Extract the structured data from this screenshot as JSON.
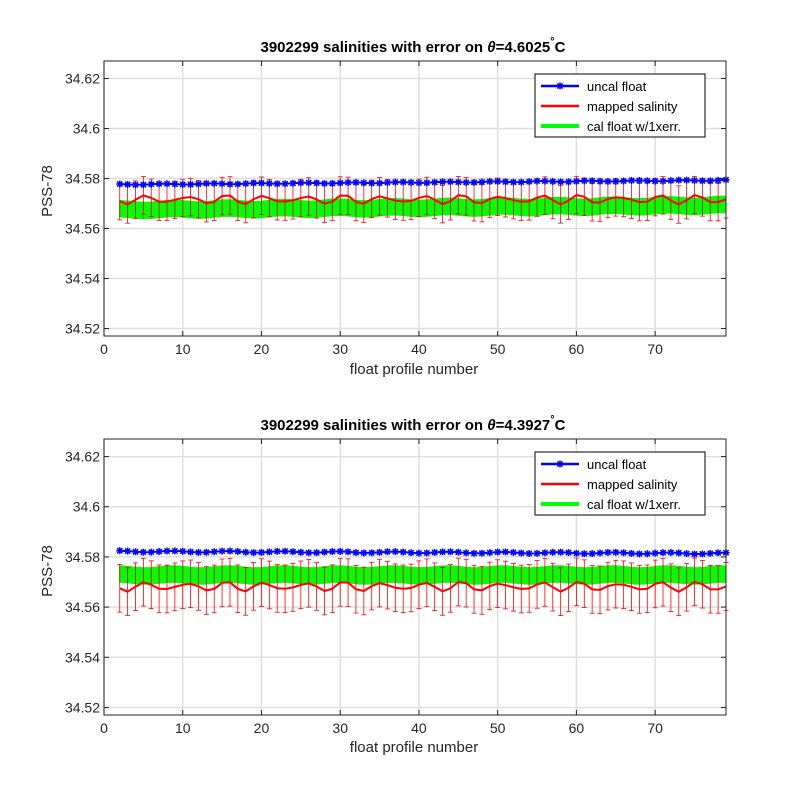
{
  "chart_data": [
    {
      "type": "line",
      "title_prefix": "3902299 salinities with error on ",
      "theta_symbol": "θ",
      "theta_value": "=4.6025",
      "degree": "°",
      "unit": "C",
      "xlabel": "float profile number",
      "ylabel": "PSS-78",
      "xlim": [
        0,
        79
      ],
      "ylim": [
        34.517,
        34.627
      ],
      "xticks": [
        0,
        10,
        20,
        30,
        40,
        50,
        60,
        70
      ],
      "xtick_labels": [
        "0",
        "10",
        "20",
        "30",
        "40",
        "50",
        "60",
        "70"
      ],
      "yticks": [
        34.52,
        34.54,
        34.56,
        34.58,
        34.6,
        34.62
      ],
      "ytick_labels": [
        "34.52",
        "34.54",
        "34.56",
        "34.58",
        "34.6",
        "34.62"
      ],
      "grid": true,
      "legend_position": "top-right",
      "legend": [
        "uncal float",
        "mapped salinity",
        "cal float w/1xerr."
      ],
      "colors": {
        "uncal": "#0000ff",
        "mapped": "#ff0000",
        "cal": "#00ff00"
      },
      "x_start": 2,
      "x_end": 79,
      "uncal": {
        "base": 34.5776,
        "slope": 2.2e-05,
        "wave_amp": 0.0002,
        "wave_period": 6
      },
      "mapped": {
        "base": 34.5716,
        "wave_amp": 0.0014,
        "wave_period": 5,
        "err": 0.0075
      },
      "cal": {
        "center_start": 34.5675,
        "center_end": 34.5693,
        "half_width": 0.0033
      }
    },
    {
      "type": "line",
      "title_prefix": "3902299 salinities with error on ",
      "theta_symbol": "θ",
      "theta_value": "=4.3927",
      "degree": "°",
      "unit": "C",
      "xlabel": "float profile number",
      "ylabel": "PSS-78",
      "xlim": [
        0,
        79
      ],
      "ylim": [
        34.517,
        34.627
      ],
      "xticks": [
        0,
        10,
        20,
        30,
        40,
        50,
        60,
        70
      ],
      "xtick_labels": [
        "0",
        "10",
        "20",
        "30",
        "40",
        "50",
        "60",
        "70"
      ],
      "yticks": [
        34.52,
        34.54,
        34.56,
        34.58,
        34.6,
        34.62
      ],
      "ytick_labels": [
        "34.52",
        "34.54",
        "34.56",
        "34.58",
        "34.6",
        "34.62"
      ],
      "grid": true,
      "legend_position": "top-right",
      "legend": [
        "uncal float",
        "mapped salinity",
        "cal float w/1xerr."
      ],
      "colors": {
        "uncal": "#0000ff",
        "mapped": "#ff0000",
        "cal": "#00ff00"
      },
      "x_start": 2,
      "x_end": 79,
      "uncal": {
        "base": 34.5822,
        "slope": -1.05e-05,
        "wave_amp": 0.0003,
        "wave_period": 7
      },
      "mapped": {
        "base": 34.5682,
        "wave_amp": 0.0015,
        "wave_period": 5,
        "err": 0.0095
      },
      "cal": {
        "center_start": 34.5728,
        "center_end": 34.5728,
        "half_width": 0.0033
      }
    }
  ]
}
